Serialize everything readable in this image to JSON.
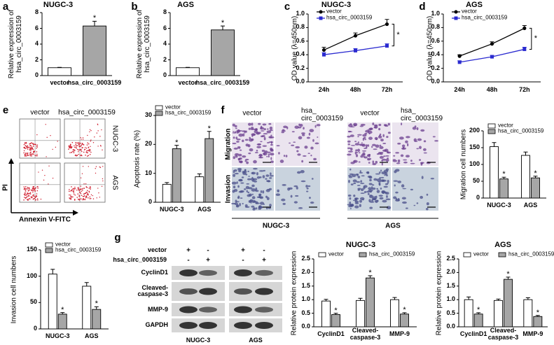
{
  "letters": [
    "a",
    "b",
    "c",
    "d",
    "e",
    "f",
    "g"
  ],
  "flow": {
    "columns": [
      "vector",
      "hsa_circ_0003159"
    ],
    "rows": [
      "NUGC-3",
      "AGS"
    ],
    "y_axis": "PI",
    "x_axis": "Annexin V-FITC"
  },
  "microscopy": {
    "columns": [
      [
        "vector"
      ],
      [
        "hsa_",
        "circ_0003159"
      ]
    ],
    "rows": [
      "Migration",
      "Invasion"
    ],
    "groups": [
      "NUGC-3",
      "AGS"
    ]
  },
  "blot": {
    "conditions": [
      {
        "name": "vector",
        "signs": [
          "+",
          "-",
          "+",
          "-"
        ]
      },
      {
        "name": "hsa_circ_0003159",
        "signs": [
          "-",
          "+",
          "-",
          "+"
        ]
      }
    ],
    "proteins": [
      "CyclinD1",
      "Cleaved-caspase-3",
      "MMP-9",
      "GAPDH"
    ],
    "groups": [
      "NUGC-3",
      "AGS"
    ]
  },
  "chart_data": [
    {
      "type": "bar",
      "title": "NUGC-3",
      "y_label": "Relative expression of hsa_circ_0003159",
      "categories": [
        "vector",
        "hsa_circ_0003159"
      ],
      "values": [
        1.0,
        6.3
      ],
      "errors": [
        0.05,
        0.6
      ],
      "significance": [
        null,
        "*"
      ],
      "colors": [
        "#ffffff",
        "#a6a6a6"
      ],
      "ylim": [
        0,
        8
      ],
      "yticks": [
        0,
        2,
        4,
        6,
        8
      ]
    },
    {
      "type": "bar",
      "title": "AGS",
      "y_label": "Relative expression of hsa_circ_0003159",
      "categories": [
        "vector",
        "hsa_circ_0003159"
      ],
      "values": [
        1.0,
        5.8
      ],
      "errors": [
        0.05,
        0.5
      ],
      "significance": [
        null,
        "*"
      ],
      "colors": [
        "#ffffff",
        "#a6a6a6"
      ],
      "ylim": [
        0,
        8
      ],
      "yticks": [
        0,
        2,
        4,
        6,
        8
      ]
    },
    {
      "type": "line",
      "title": "NUGC-3",
      "y_label": "OD value (λ=450nm)",
      "categories": [
        "24h",
        "48h",
        "72h"
      ],
      "series": [
        {
          "name": "vector",
          "color": "#000000",
          "marker": "circle",
          "values": [
            0.47,
            0.68,
            0.85
          ],
          "errors": [
            0.04,
            0.04,
            0.07
          ]
        },
        {
          "name": "hsa_circ_0003159",
          "color": "#2b2bd0",
          "marker": "square",
          "values": [
            0.4,
            0.46,
            0.53
          ],
          "errors": [
            0.03,
            0.03,
            0.03
          ]
        }
      ],
      "annotation": "*",
      "ylim": [
        0,
        1
      ],
      "yticks": [
        {
          "value": 0,
          "label": "0.0"
        },
        0.2,
        0.4,
        0.6,
        0.8,
        {
          "value": 1,
          "label": "1.0"
        }
      ]
    },
    {
      "type": "line",
      "title": "AGS",
      "y_label": "OD value (λ=450nm)",
      "categories": [
        "24h",
        "48h",
        "72h"
      ],
      "series": [
        {
          "name": "vector",
          "color": "#000000",
          "marker": "circle",
          "values": [
            0.38,
            0.56,
            0.79
          ],
          "errors": [
            0.02,
            0.03,
            0.04
          ]
        },
        {
          "name": "hsa_circ_0003159",
          "color": "#2b2bd0",
          "marker": "square",
          "values": [
            0.29,
            0.37,
            0.48
          ],
          "errors": [
            0.02,
            0.02,
            0.03
          ]
        }
      ],
      "annotation": "*",
      "ylim": [
        0,
        1
      ],
      "yticks": [
        {
          "value": 0,
          "label": "0.0"
        },
        0.2,
        0.4,
        0.6,
        0.8,
        {
          "value": 1,
          "label": "1.0"
        }
      ]
    },
    {
      "type": "bar",
      "y_label": "Apoptosis rate (%)",
      "categories": [
        "NUGC-3",
        "AGS"
      ],
      "series": [
        {
          "name": "vector",
          "color": "#ffffff",
          "values": [
            6.2,
            8.8
          ],
          "errors": [
            0.6,
            1.0
          ]
        },
        {
          "name": "hsa_circ_0003159",
          "color": "#a6a6a6",
          "values": [
            18.5,
            22
          ],
          "errors": [
            1.2,
            2.5
          ],
          "significance": [
            "*",
            "*"
          ]
        }
      ],
      "ylim": [
        0,
        30
      ],
      "yticks": [
        0,
        10,
        20,
        30
      ]
    },
    {
      "type": "bar",
      "y_label": "Migration cell numbers",
      "categories": [
        "NUGC-3",
        "AGS"
      ],
      "series": [
        {
          "name": "vector",
          "color": "#ffffff",
          "values": [
            153,
            127
          ],
          "errors": [
            12,
            10
          ]
        },
        {
          "name": "hsa_circ_0003159",
          "color": "#a6a6a6",
          "values": [
            57,
            60
          ],
          "errors": [
            5,
            5
          ],
          "significance": [
            "*",
            "*"
          ]
        }
      ],
      "ylim": [
        0,
        200
      ],
      "yticks": [
        0,
        50,
        100,
        150,
        200
      ]
    },
    {
      "type": "bar",
      "y_label": "Invasion cell numbers",
      "categories": [
        "NUGC-3",
        "AGS"
      ],
      "series": [
        {
          "name": "vector",
          "color": "#ffffff",
          "values": [
            104,
            81
          ],
          "errors": [
            9,
            7
          ]
        },
        {
          "name": "hsa_circ_0003159",
          "color": "#a6a6a6",
          "values": [
            28,
            37
          ],
          "errors": [
            3,
            5
          ],
          "significance": [
            "*",
            "*"
          ]
        }
      ],
      "ylim": [
        0,
        150
      ],
      "yticks": [
        0,
        50,
        100,
        150
      ]
    },
    {
      "type": "bar",
      "title": "NUGC-3",
      "y_label": "Relative protein expression",
      "categories": [
        "CyclinD1",
        "Cleaved-caspase-3",
        "MMP-9"
      ],
      "series": [
        {
          "name": "vector",
          "color": "#ffffff",
          "values": [
            0.95,
            0.97,
            1.0
          ],
          "errors": [
            0.06,
            0.08,
            0.08
          ]
        },
        {
          "name": "hsa_circ_0003159",
          "color": "#a6a6a6",
          "values": [
            0.45,
            1.8,
            0.47
          ],
          "errors": [
            0.05,
            0.08,
            0.05
          ],
          "significance": [
            "*",
            "*",
            "*"
          ]
        }
      ],
      "ylim": [
        0,
        2.5
      ],
      "yticks": [
        {
          "value": 0,
          "label": "0.0"
        },
        0.5,
        {
          "value": 1,
          "label": "1.0"
        },
        1.5,
        {
          "value": 2,
          "label": "2.0"
        },
        2.5
      ]
    },
    {
      "type": "bar",
      "title": "AGS",
      "y_label": "Relative protein expression",
      "categories": [
        "CyclinD1",
        "Cleaved-caspase-3",
        "MMP-9"
      ],
      "series": [
        {
          "name": "vector",
          "color": "#ffffff",
          "values": [
            1.0,
            0.97,
            1.0
          ],
          "errors": [
            0.1,
            0.05,
            0.07
          ]
        },
        {
          "name": "hsa_circ_0003159",
          "color": "#a6a6a6",
          "values": [
            0.47,
            1.75,
            0.38
          ],
          "errors": [
            0.05,
            0.08,
            0.04
          ],
          "significance": [
            "*",
            "*",
            "*"
          ]
        }
      ],
      "ylim": [
        0,
        2.5
      ],
      "yticks": [
        {
          "value": 0,
          "label": "0.0"
        },
        0.5,
        {
          "value": 1,
          "label": "1.0"
        },
        1.5,
        {
          "value": 2,
          "label": "2.0"
        },
        2.5
      ]
    }
  ]
}
